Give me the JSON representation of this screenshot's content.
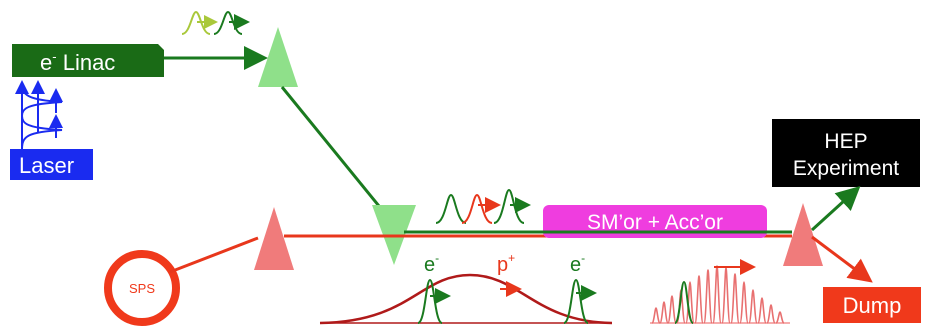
{
  "boxes": {
    "linac": {
      "label_main": "e",
      "label_sup": "-",
      "label_rest": " Linac",
      "color": "#1a6b16"
    },
    "laser": {
      "label": "Laser",
      "color": "#1a2bf0"
    },
    "hep": {
      "line1": "HEP",
      "line2": "Experiment",
      "color": "#000000"
    },
    "smacc": {
      "label": "SM’or + Acc’or",
      "color": "#ef3ddf"
    },
    "dump": {
      "label": "Dump",
      "color": "#f0391b"
    },
    "sps": {
      "label": "SPS",
      "color": "#f0391b"
    }
  },
  "particle_labels": {
    "electron_left": {
      "base": "e",
      "sup": "-"
    },
    "proton": {
      "base": "p",
      "sup": "+"
    },
    "electron_right": {
      "base": "e",
      "sup": "-"
    }
  },
  "colors": {
    "electron_green": "#1a7a1f",
    "light_green": "#8fe08a",
    "proton_red": "#e8371c",
    "salmon": "#f07b7b",
    "dark_red": "#b01a1a",
    "laser_blue": "#1a2bf0"
  }
}
